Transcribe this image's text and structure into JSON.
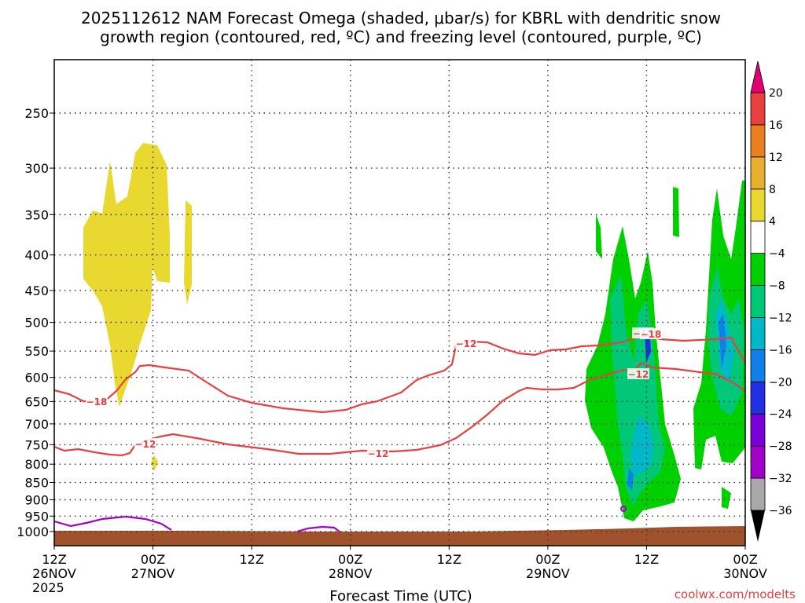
{
  "chart_data": {
    "type": "time-height cross section",
    "title_line1": "2025112612 NAM Forecast Omega (shaded, μbar/s) for KBRL with dendritic snow",
    "title_line2": "growth region (contoured, red, ºC) and freezing level (contoured, purple, ºC)",
    "xlabel": "Forecast Time (UTC)",
    "x_ticks": [
      {
        "hour": 0,
        "line1": "12Z",
        "line2": "26NOV",
        "line3": "2025"
      },
      {
        "hour": 12,
        "line1": "00Z",
        "line2": "27NOV",
        "line3": ""
      },
      {
        "hour": 24,
        "line1": "12Z",
        "line2": "",
        "line3": ""
      },
      {
        "hour": 36,
        "line1": "00Z",
        "line2": "28NOV",
        "line3": ""
      },
      {
        "hour": 48,
        "line1": "12Z",
        "line2": "",
        "line3": ""
      },
      {
        "hour": 60,
        "line1": "00Z",
        "line2": "29NOV",
        "line3": ""
      },
      {
        "hour": 72,
        "line1": "12Z",
        "line2": "",
        "line3": ""
      },
      {
        "hour": 84,
        "line1": "00Z",
        "line2": "30NOV",
        "line3": ""
      }
    ],
    "y_ticks": [
      "250",
      "300",
      "350",
      "400",
      "450",
      "500",
      "550",
      "600",
      "650",
      "700",
      "750",
      "800",
      "850",
      "900",
      "950",
      "1000"
    ],
    "ylim": [
      200,
      1020
    ],
    "xlim": [
      0,
      84
    ],
    "grid": true,
    "colorbar": {
      "labels": [
        "20",
        "16",
        "12",
        "8",
        "4",
        "−4",
        "−8",
        "−12",
        "−16",
        "−20",
        "−24",
        "−28",
        "−32",
        "−36"
      ],
      "colors": [
        "#e8e8e8",
        "#a8a8a8",
        "#a000c8",
        "#7a00d8",
        "#2030e0",
        "#1080e8",
        "#00b8c8",
        "#00c878",
        "#00d000",
        "#ffffff",
        "#e8d830",
        "#e8b030",
        "#e88020",
        "#e84040",
        "#e00070"
      ]
    },
    "contours": [
      {
        "label": "−18",
        "color": "#e84040"
      },
      {
        "label": "−18",
        "color": "#e84040"
      },
      {
        "label": "−12",
        "color": "#e84040"
      },
      {
        "label": "−12",
        "color": "#e84040"
      },
      {
        "label": "−12",
        "color": "#e84040"
      },
      {
        "label": "−12",
        "color": "#e84040"
      },
      {
        "label": "−18",
        "color": "#e84040"
      }
    ],
    "freezing_color": "#a000c8",
    "ground_color": "#a0522d",
    "credit": "coolwx.com/modelts"
  }
}
